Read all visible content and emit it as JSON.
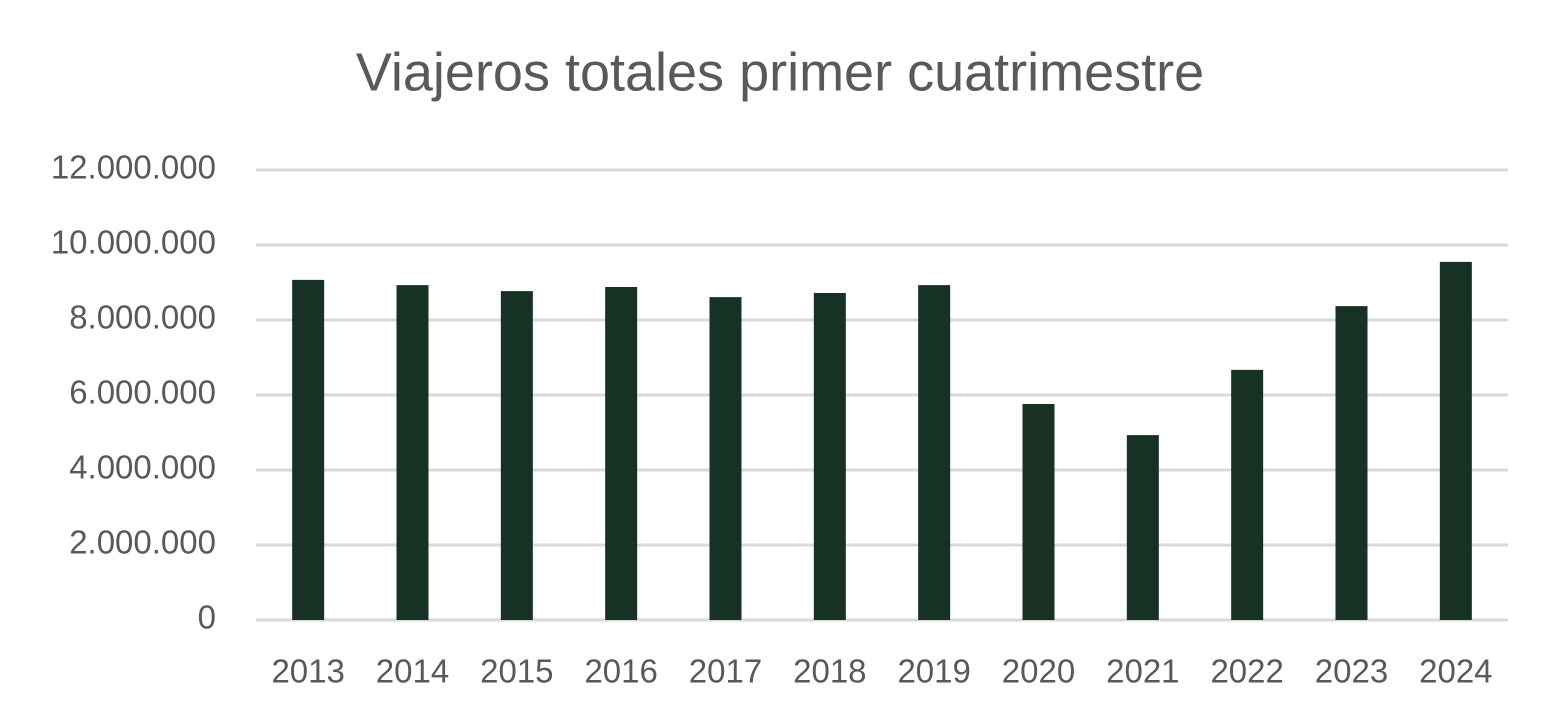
{
  "chart_data": {
    "type": "bar",
    "title": "Viajeros totales primer cuatrimestre",
    "categories": [
      "2013",
      "2014",
      "2015",
      "2016",
      "2017",
      "2018",
      "2019",
      "2020",
      "2021",
      "2022",
      "2023",
      "2024"
    ],
    "values": [
      9070000,
      8930000,
      8770000,
      8880000,
      8610000,
      8720000,
      8930000,
      5760000,
      4930000,
      6670000,
      8370000,
      9550000
    ],
    "color": "#173124",
    "ylim": [
      0,
      12000000
    ],
    "yticks": [
      0,
      {
        "value": 2000000,
        "label": "2.000.000"
      },
      {
        "value": 4000000,
        "label": "4.000.000"
      },
      {
        "value": 6000000,
        "label": "6.000.000"
      },
      {
        "value": 8000000,
        "label": "8.000.000"
      },
      {
        "value": 10000000,
        "label": "10.000.000"
      },
      {
        "value": 12000000,
        "label": "12.000.000"
      }
    ],
    "grid": true
  }
}
